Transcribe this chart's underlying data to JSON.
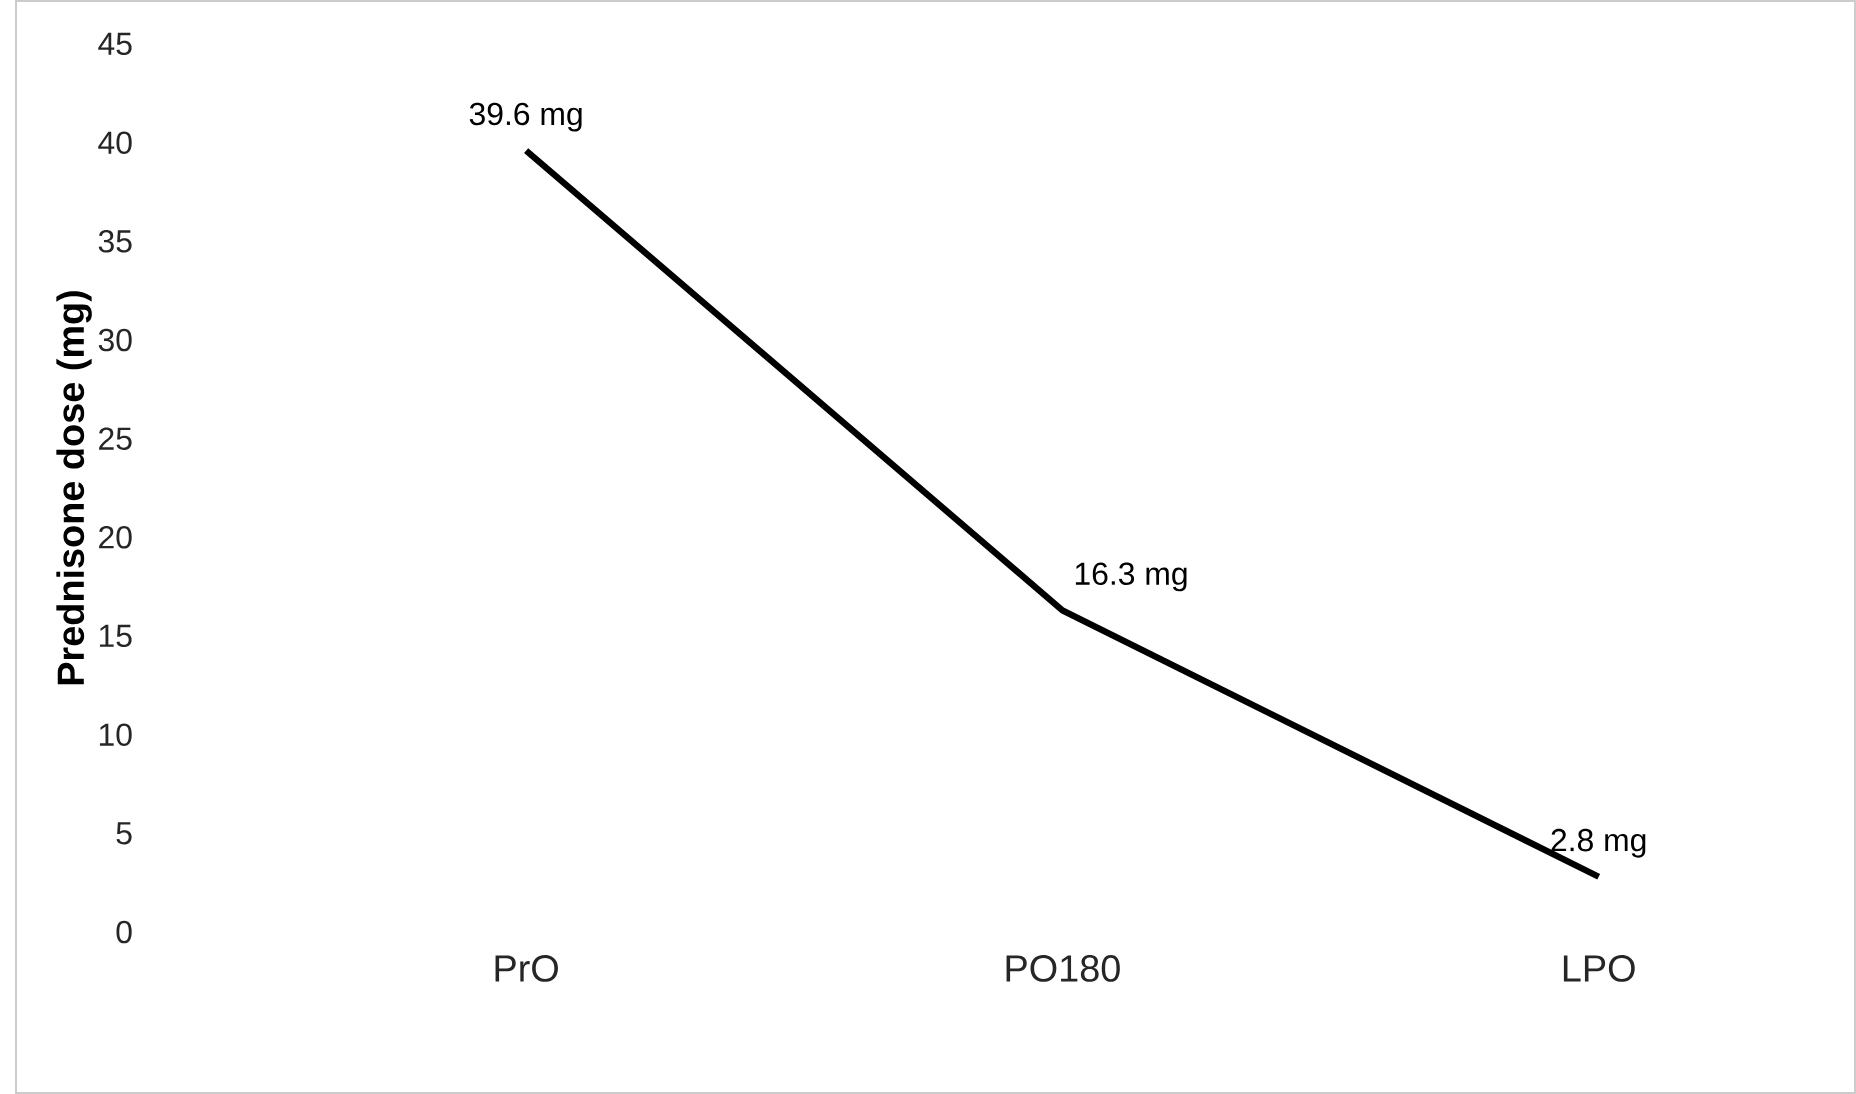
{
  "chart_data": {
    "type": "line",
    "ylabel": "Prednisone dose (mg)",
    "categories": [
      "PrO",
      "PO180",
      "LPO"
    ],
    "values": [
      39.6,
      16.3,
      2.8
    ],
    "value_labels": [
      "39.6 mg",
      "16.3 mg",
      "2.8 mg"
    ],
    "color": "#000000",
    "ylim": [
      0,
      45
    ],
    "yticks": [
      0,
      5,
      10,
      15,
      20,
      25,
      30,
      35,
      40,
      45
    ],
    "grid": false,
    "marker": "none",
    "line_style": "solid"
  }
}
